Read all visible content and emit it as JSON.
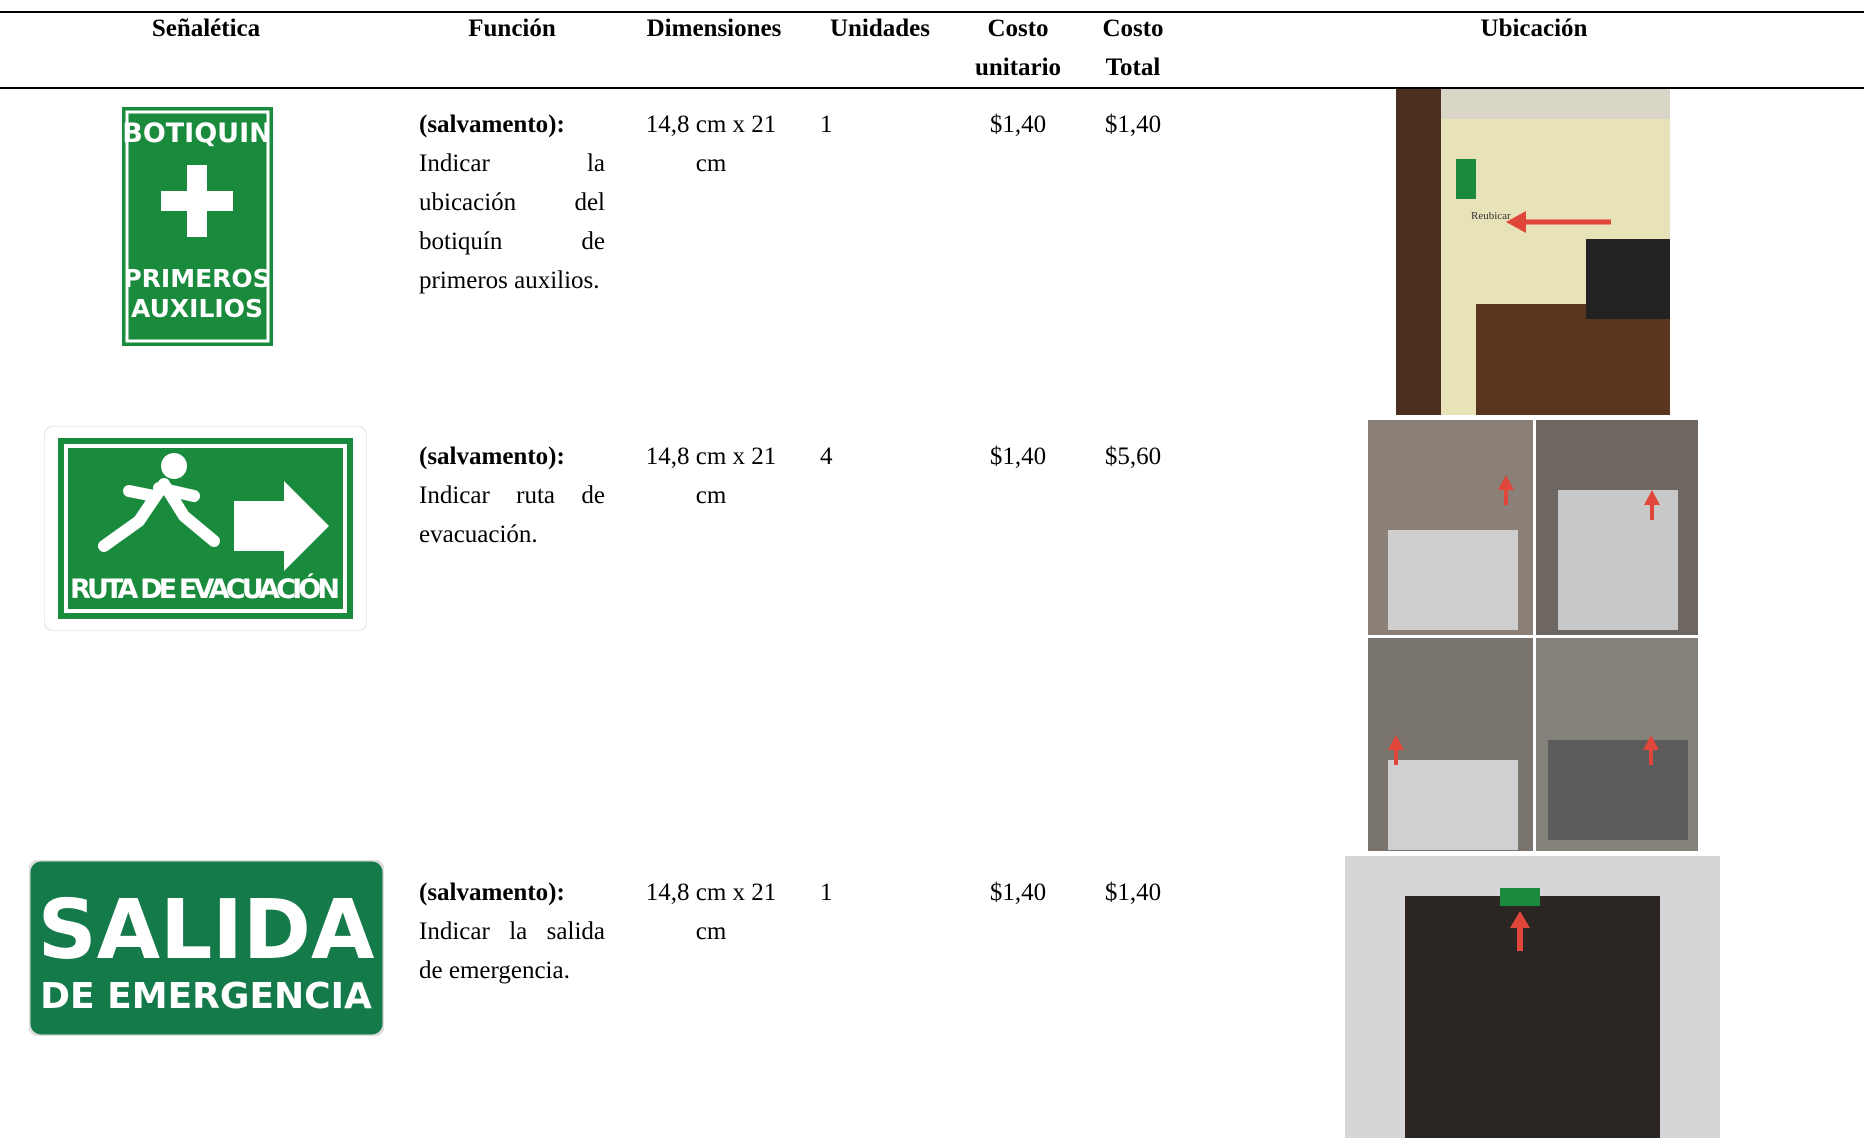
{
  "table": {
    "headers": [
      "Señalética",
      "Función",
      "Dimensiones",
      "Unidades",
      "Costo unitario",
      "Costo Total",
      "Ubicación"
    ],
    "rows": [
      {
        "sign": [
          "BOTIQUIN",
          "PRIMEROS",
          "AUXILIOS"
        ],
        "function_label": "(salvamento):",
        "function_text": "Indicar la ubicación del botiquín de primeros auxilios.",
        "dimensions": "14,8 cm x 21 cm",
        "units": 1,
        "unit_cost": "$1,40",
        "total_cost": "$1,40",
        "photo_note": "Reubicar"
      },
      {
        "sign": [
          "RUTA DE EVACUACIÓN"
        ],
        "function_label": "(salvamento):",
        "function_text": "Indicar ruta de evacuación.",
        "dimensions": "14,8 cm x 21 cm",
        "units": 4,
        "unit_cost": "$1,40",
        "total_cost": "$5,60"
      },
      {
        "sign": [
          "SALIDA",
          "DE EMERGENCIA"
        ],
        "function_label": "(salvamento):",
        "function_text": "Indicar la salida de emergencia.",
        "dimensions": "14,8 cm x 21 cm",
        "units": 1,
        "unit_cost": "$1,40",
        "total_cost": "$1,40"
      }
    ]
  }
}
